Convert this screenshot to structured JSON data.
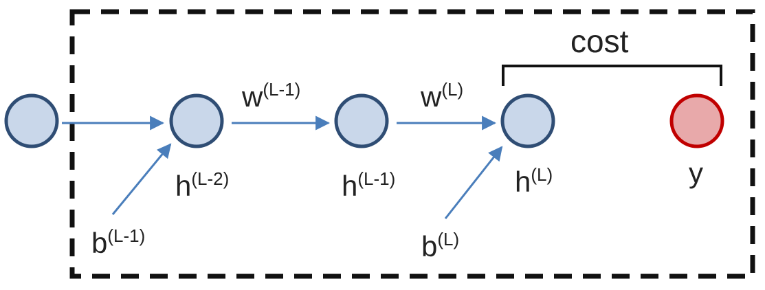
{
  "diagram": {
    "colors": {
      "node_fill": "#c9d7ea",
      "node_stroke": "#2f4d74",
      "output_fill": "#e8a9aa",
      "output_stroke": "#c00000",
      "arrow": "#4a7ebb",
      "box": "#111111",
      "text": "#222222"
    },
    "nodes": {
      "input": {},
      "h_l2": {
        "base": "h",
        "sup": "(L-2)"
      },
      "h_l1": {
        "base": "h",
        "sup": "(L-1)"
      },
      "h_l": {
        "base": "h",
        "sup": "(L)"
      },
      "y": {
        "base": "y"
      }
    },
    "weights": {
      "w_l1": {
        "base": "w",
        "sup": "(L-1)"
      },
      "w_l": {
        "base": "w",
        "sup": "(L)"
      }
    },
    "biases": {
      "b_l1": {
        "base": "b",
        "sup": "(L-1)"
      },
      "b_l": {
        "base": "b",
        "sup": "(L)"
      }
    },
    "cost_label": "cost"
  }
}
